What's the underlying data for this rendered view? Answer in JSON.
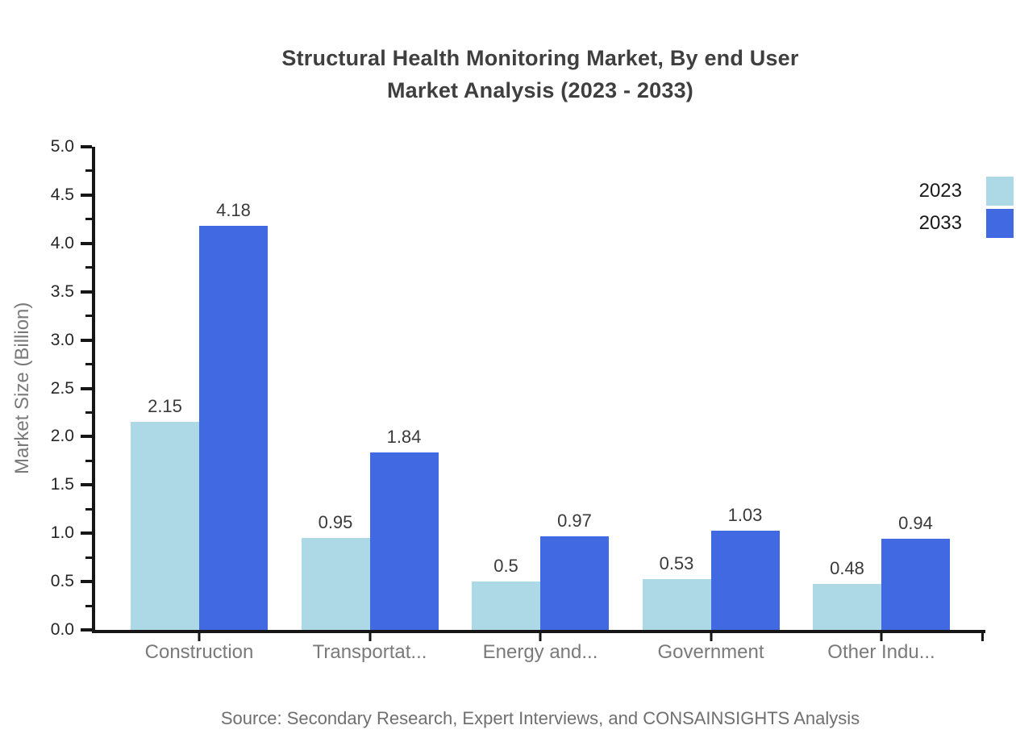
{
  "header": {
    "title_line1": "Structural Health Monitoring Market, By end User",
    "title_line2": "Market Analysis (2023 - 2033)"
  },
  "footer": {
    "source": "Source: Secondary Research, Expert Interviews, and CONSAINSIGHTS Analysis"
  },
  "legend": {
    "position": "top-right",
    "items": [
      {
        "label": "2023",
        "color": "#ADD8E6"
      },
      {
        "label": "2033",
        "color": "#4169E1"
      }
    ]
  },
  "chart_data": {
    "type": "bar",
    "title": "Structural Health Monitoring Market, By end User Market Analysis (2023 - 2033)",
    "categories": [
      "Construction",
      "Transportat...",
      "Energy and...",
      "Government",
      "Other Indu..."
    ],
    "series": [
      {
        "name": "2023",
        "color": "#ADD8E6",
        "values": [
          2.15,
          0.95,
          0.5,
          0.53,
          0.48
        ]
      },
      {
        "name": "2033",
        "color": "#4169E1",
        "values": [
          4.18,
          1.84,
          0.97,
          1.03,
          0.94
        ]
      }
    ],
    "data_labels": {
      "2023": [
        "2.15",
        "0.95",
        "0.5",
        "0.53",
        "0.48"
      ],
      "2033": [
        "4.18",
        "1.84",
        "0.97",
        "1.03",
        "0.94"
      ]
    },
    "xlabel": "",
    "ylabel": "Market Size (Billion)",
    "ylim": [
      0,
      5
    ],
    "yticks": [
      "0.0",
      "0.5",
      "1.0",
      "1.5",
      "2.0",
      "2.5",
      "3.0",
      "3.5",
      "4.0",
      "4.5",
      "5.0"
    ],
    "minor_ticks": [
      0.25,
      0.75,
      1.25,
      1.75,
      2.25,
      2.75,
      3.25,
      3.75,
      4.25,
      4.75
    ],
    "grid": false,
    "legend_position": "top-right",
    "colors": {
      "axis": "#161616",
      "tick_label": "#262626",
      "category_label": "#7A7A7A",
      "axis_title": "#7A7A7A",
      "value_label": "#3A3A3A",
      "title": "#3F3F3F",
      "source": "#6F6F6F"
    }
  }
}
